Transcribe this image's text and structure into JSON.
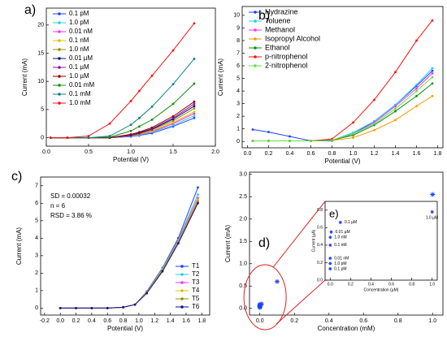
{
  "chart_data": [
    {
      "type": "line",
      "label": "a)",
      "xlabel": "Potential (V)",
      "ylabel": "Current (mA)",
      "x": [
        0.05,
        0.25,
        0.5,
        0.75,
        1.0,
        1.1,
        1.25,
        1.5,
        1.75
      ],
      "xlim": [
        0,
        2
      ],
      "ylim": [
        -1.5,
        23
      ],
      "xticks": [
        {
          "value": 0,
          "label": "0.0"
        },
        0.5,
        {
          "value": 1,
          "label": "1.0"
        },
        1.5,
        {
          "value": 2,
          "label": "2.0"
        }
      ],
      "yticks": [
        0,
        5,
        10,
        15,
        20
      ],
      "legend": "upper left",
      "series": [
        {
          "name": "0.1 pM",
          "color": "#1f3fff",
          "values": [
            0,
            0,
            0,
            0,
            0.2,
            0.4,
            0.8,
            2.0,
            3.5
          ]
        },
        {
          "name": "1.0 pM",
          "color": "#20d0e0",
          "values": [
            0,
            0,
            0,
            0,
            0.25,
            0.5,
            1.0,
            2.2,
            3.9
          ]
        },
        {
          "name": "0.01 nM",
          "color": "#ff30ff",
          "values": [
            0,
            0,
            0,
            0,
            0.3,
            0.55,
            1.1,
            2.5,
            4.3
          ]
        },
        {
          "name": "0.1 nM",
          "color": "#e0c000",
          "values": [
            0,
            0,
            0,
            0,
            0.35,
            0.6,
            1.2,
            2.7,
            4.6
          ]
        },
        {
          "name": "1.0 nM",
          "color": "#909000",
          "values": [
            0,
            0,
            0,
            0,
            0.4,
            0.7,
            1.4,
            3.0,
            5.2
          ]
        },
        {
          "name": "0.01 µM",
          "color": "#101090",
          "values": [
            0,
            0,
            0,
            0,
            0.4,
            0.8,
            1.5,
            3.3,
            5.6
          ]
        },
        {
          "name": "0.1 µM",
          "color": "#9010a0",
          "values": [
            0,
            0,
            0,
            0,
            0.5,
            0.9,
            1.6,
            3.5,
            6.0
          ]
        },
        {
          "name": "1.0 µM",
          "color": "#900000",
          "values": [
            0,
            0,
            0,
            0,
            0.6,
            1.0,
            1.8,
            3.8,
            6.4
          ]
        },
        {
          "name": "0.01 mM",
          "color": "#109010",
          "values": [
            0,
            0,
            0,
            0.1,
            1.2,
            2.0,
            3.2,
            6.0,
            9.6
          ]
        },
        {
          "name": "0.1 mM",
          "color": "#108080",
          "values": [
            0,
            0,
            0,
            0.3,
            2.3,
            3.5,
            5.5,
            9.5,
            14
          ]
        },
        {
          "name": "1.0 mM",
          "color": "#ff1010",
          "values": [
            0,
            0,
            0.3,
            2.5,
            6.5,
            8.3,
            11,
            15.5,
            20.3
          ]
        }
      ]
    },
    {
      "type": "line",
      "label": "b)",
      "xlabel": "Potential (V)",
      "ylabel": "Current (mA)",
      "x": [
        0.05,
        0.2,
        0.4,
        0.6,
        0.8,
        1.0,
        1.2,
        1.4,
        1.6,
        1.75
      ],
      "xlim": [
        -0.05,
        1.85
      ],
      "ylim": [
        -0.5,
        10.7
      ],
      "xticks": [
        {
          "value": 0,
          "label": "0.0"
        },
        0.2,
        0.4,
        0.6,
        0.8,
        {
          "value": 1,
          "label": "1.0"
        },
        1.2,
        1.4,
        1.6,
        1.8
      ],
      "yticks": [
        0,
        1,
        2,
        3,
        4,
        5,
        6,
        7,
        8,
        9,
        10
      ],
      "legend": "upper left",
      "series": [
        {
          "name": "Hydrazine",
          "color": "#1f3fff",
          "values": [
            0.95,
            0.75,
            0.4,
            0.05,
            0.05,
            0.6,
            1.6,
            2.9,
            4.4,
            5.6
          ]
        },
        {
          "name": "Toluene",
          "color": "#20d0e0",
          "values": [
            0.05,
            0.05,
            0.05,
            0.05,
            0.1,
            0.7,
            1.6,
            2.9,
            4.5,
            5.8
          ]
        },
        {
          "name": "Methanol",
          "color": "#ff30ff",
          "values": [
            0.05,
            0.05,
            0.05,
            0.05,
            0.1,
            0.6,
            1.5,
            2.8,
            4.2,
            5.4
          ]
        },
        {
          "name": "Isopropyl Alcohol",
          "color": "#ff9900",
          "values": [
            0.05,
            0.05,
            0.05,
            0.05,
            0.08,
            0.3,
            0.9,
            1.7,
            2.8,
            3.6
          ]
        },
        {
          "name": "Ethanol",
          "color": "#109010",
          "values": [
            0.05,
            0.05,
            0.05,
            0.05,
            0.1,
            0.5,
            1.3,
            2.4,
            3.6,
            4.6
          ]
        },
        {
          "name": "p-nitrophenol",
          "color": "#ff1010",
          "values": [
            0.05,
            0.05,
            0.05,
            0.05,
            0.2,
            1.5,
            3.3,
            5.5,
            8.0,
            9.6
          ]
        },
        {
          "name": "2-nitrophenol",
          "color": "#60e040",
          "values": [
            0.05,
            0.05,
            0.05,
            0.05,
            0.1,
            0.6,
            1.4,
            2.6,
            4.0,
            5.1
          ]
        }
      ]
    },
    {
      "type": "line",
      "label": "c)",
      "xlabel": "Potential (V)",
      "ylabel": "Current (mA)",
      "annotations": [
        "SD = 0.00032",
        "n = 6",
        "RSD = 3.86 %"
      ],
      "x": [
        0,
        0.2,
        0.4,
        0.6,
        0.8,
        0.95,
        1.1,
        1.3,
        1.5,
        1.75
      ],
      "xlim": [
        -0.25,
        1.9
      ],
      "ylim": [
        -0.4,
        7.5
      ],
      "xticks": [
        -0.2,
        {
          "value": 0,
          "label": "0.0"
        },
        0.2,
        0.4,
        0.6,
        0.8,
        {
          "value": 1,
          "label": "1.0"
        },
        1.2,
        1.4,
        1.6,
        1.8
      ],
      "yticks": [
        0,
        1,
        2,
        3,
        4,
        5,
        6,
        7
      ],
      "legend": "lower right",
      "series": [
        {
          "name": "T1",
          "color": "#1f3fff",
          "values": [
            0,
            0,
            0,
            0,
            0.05,
            0.2,
            0.95,
            2.3,
            4.0,
            6.9
          ]
        },
        {
          "name": "T2",
          "color": "#20d0e0",
          "values": [
            0,
            0,
            0,
            0,
            0.05,
            0.2,
            0.9,
            2.25,
            3.9,
            6.5
          ]
        },
        {
          "name": "T3",
          "color": "#ff30ff",
          "values": [
            0,
            0,
            0,
            0,
            0.05,
            0.2,
            0.9,
            2.2,
            3.85,
            6.3
          ]
        },
        {
          "name": "T4",
          "color": "#e0c000",
          "values": [
            0,
            0,
            0,
            0,
            0.05,
            0.2,
            0.9,
            2.2,
            3.8,
            6.2
          ]
        },
        {
          "name": "T5",
          "color": "#909000",
          "values": [
            0,
            0,
            0,
            0,
            0.05,
            0.2,
            0.85,
            2.15,
            3.75,
            6.1
          ]
        },
        {
          "name": "T6",
          "color": "#101090",
          "values": [
            0,
            0,
            0,
            0,
            0.05,
            0.2,
            0.85,
            2.1,
            3.7,
            6.0
          ]
        }
      ]
    },
    {
      "type": "scatter",
      "label": "d)",
      "xlabel": "Concentration (mM)",
      "ylabel": "Current (mA)",
      "xlim": [
        -0.06,
        1.06
      ],
      "ylim": [
        -0.15,
        3.05
      ],
      "xticks": [
        {
          "value": 0,
          "label": "0.0"
        },
        0.2,
        0.4,
        0.6,
        0.8,
        {
          "value": 1,
          "label": "1.0"
        }
      ],
      "yticks": [
        {
          "value": 0,
          "label": "0.0"
        },
        0.5,
        {
          "value": 1,
          "label": "1.0"
        },
        1.5,
        {
          "value": 2,
          "label": "2.0"
        },
        2.5,
        {
          "value": 3,
          "label": "3.0"
        }
      ],
      "series": [
        {
          "color": "#2040ff",
          "x": [
            1e-10,
            1e-09,
            1e-08,
            1e-07,
            1e-06,
            1e-05,
            0.0001,
            0.001,
            0.01,
            0.1,
            1.0
          ],
          "values": [
            0.02,
            0.03,
            0.04,
            0.05,
            0.06,
            0.07,
            0.08,
            0.09,
            0.1,
            0.6,
            2.55
          ]
        }
      ]
    },
    {
      "type": "scatter",
      "label": "e)",
      "xlabel": "Concentration (µM)",
      "ylabel": "Current (µA)",
      "xlim": [
        -0.05,
        1.05
      ],
      "ylim": [
        0,
        0.9
      ],
      "xticks": [
        {
          "value": 0,
          "label": "0.0"
        },
        0.2,
        0.4,
        0.6,
        0.8,
        {
          "value": 1,
          "label": "1.0"
        }
      ],
      "yticks": [
        {
          "value": 0,
          "label": "0.0"
        },
        0.2,
        0.4,
        0.6,
        0.8
      ],
      "series": [
        {
          "color": "#2040ff",
          "x": [
            1.0,
            0.1,
            0.01,
            0.001,
            0.0001,
            1e-05,
            1e-06,
            1e-07
          ],
          "values": [
            0.78,
            0.66,
            0.55,
            0.49,
            0.4,
            0.25,
            0.19,
            0.13
          ],
          "point_labels": [
            "1.0 µM",
            "0.1 µM",
            "0.01 µM",
            "1.0 nM",
            "0.1 nM",
            "0.01 nM",
            "1.0 pM",
            "0.1 pM"
          ]
        }
      ]
    }
  ]
}
